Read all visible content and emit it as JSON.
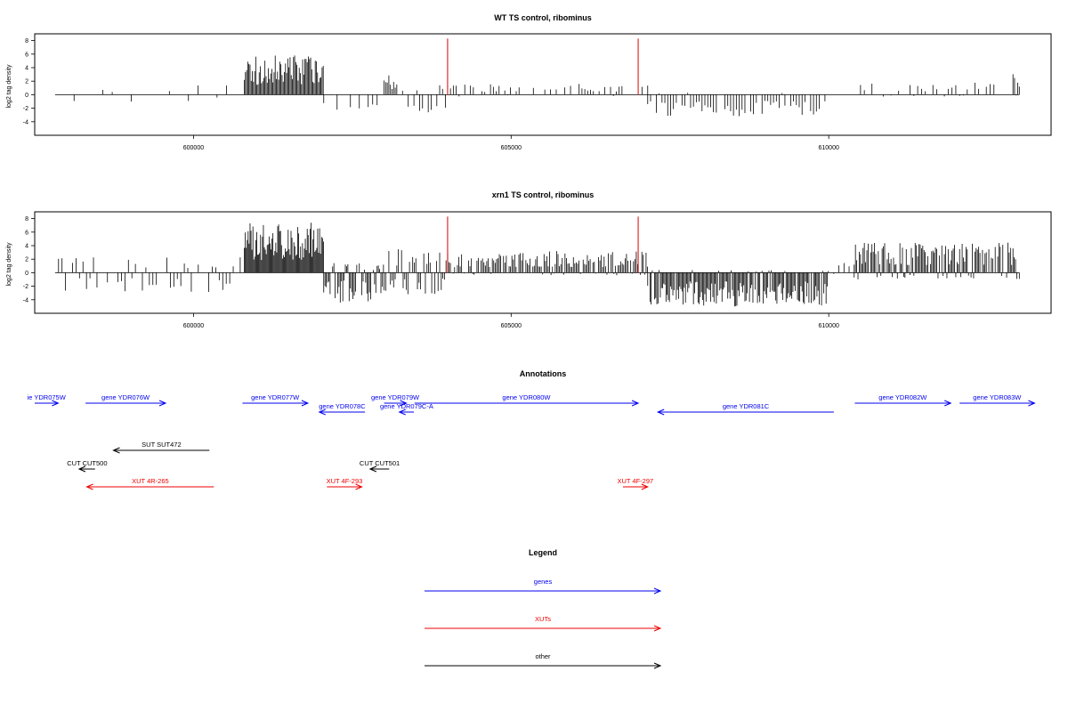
{
  "chart_data": [
    {
      "type": "bar",
      "title": "WT TS control, ribominus",
      "ylabel": "log2 tag density",
      "xlim": [
        597500,
        613500
      ],
      "ylim": [
        -6,
        9
      ],
      "yticks": [
        -4,
        -2,
        0,
        2,
        4,
        6,
        8
      ],
      "xticks": [
        600000,
        605000,
        610000
      ],
      "xtick_labels": [
        "600000",
        "605000",
        "610000"
      ],
      "markers": {
        "color": "#dd0000",
        "x": [
          604000,
          607000
        ],
        "height": 8.3
      },
      "bar_color": "#000000",
      "segments": [
        {
          "from": 597820,
          "to": 600800,
          "step": 150,
          "plus": 1.5,
          "minus": 1.2,
          "density": 0.45,
          "seed": 1
        },
        {
          "from": 600800,
          "to": 602050,
          "step": 18,
          "plus": 5.8,
          "minus": 0,
          "density": 1.0,
          "seed": 2
        },
        {
          "from": 602050,
          "to": 602900,
          "step": 70,
          "plus": 0.6,
          "minus": 2.3,
          "density": 0.6,
          "seed": 3
        },
        {
          "from": 603000,
          "to": 603200,
          "step": 25,
          "plus": 3.0,
          "minus": 0.2,
          "density": 1.0,
          "seed": 4
        },
        {
          "from": 603200,
          "to": 604000,
          "step": 45,
          "plus": 1.6,
          "minus": 2.8,
          "density": 0.8,
          "seed": 5
        },
        {
          "from": 604000,
          "to": 607150,
          "step": 45,
          "plus": 1.6,
          "minus": 0.3,
          "density": 0.55,
          "seed": 6
        },
        {
          "from": 607150,
          "to": 610000,
          "step": 45,
          "plus": 0.3,
          "minus": 3.2,
          "density": 0.85,
          "seed": 7
        },
        {
          "from": 610000,
          "to": 610500,
          "step": 120,
          "plus": 0.3,
          "minus": 0.8,
          "density": 0.3,
          "seed": 8
        },
        {
          "from": 610500,
          "to": 612900,
          "step": 60,
          "plus": 1.9,
          "minus": 0.3,
          "density": 0.6,
          "seed": 9
        },
        {
          "from": 612900,
          "to": 613000,
          "step": 25,
          "plus": 3.3,
          "minus": 0.2,
          "density": 1.0,
          "seed": 10
        }
      ]
    },
    {
      "type": "bar",
      "title": "xrn1 TS control, ribominus",
      "ylabel": "log2 tag density",
      "xlim": [
        597500,
        613500
      ],
      "ylim": [
        -6,
        9
      ],
      "yticks": [
        -4,
        -2,
        0,
        2,
        4,
        6,
        8
      ],
      "xticks": [
        600000,
        605000,
        610000
      ],
      "xtick_labels": [
        "600000",
        "605000",
        "610000"
      ],
      "markers": {
        "color": "#dd0000",
        "x": [
          604000,
          607000
        ],
        "height": 8.3
      },
      "bar_color": "#000000",
      "segments": [
        {
          "from": 597820,
          "to": 600800,
          "step": 55,
          "plus": 2.5,
          "minus": 3.0,
          "density": 0.75,
          "seed": 11
        },
        {
          "from": 600800,
          "to": 602050,
          "step": 15,
          "plus": 7.5,
          "minus": 0,
          "density": 1.0,
          "seed": 12
        },
        {
          "from": 602050,
          "to": 603000,
          "step": 20,
          "plus": 1.5,
          "minus": 4.5,
          "density": 0.9,
          "seed": 13
        },
        {
          "from": 603000,
          "to": 604000,
          "step": 25,
          "plus": 3.5,
          "minus": 3.2,
          "density": 0.9,
          "seed": 14
        },
        {
          "from": 604000,
          "to": 607150,
          "step": 22,
          "plus": 3.2,
          "minus": 0.4,
          "density": 0.9,
          "seed": 15
        },
        {
          "from": 607150,
          "to": 610000,
          "step": 18,
          "plus": 0.4,
          "minus": 5.0,
          "density": 0.95,
          "seed": 16
        },
        {
          "from": 610000,
          "to": 610400,
          "step": 80,
          "plus": 1.5,
          "minus": 0.5,
          "density": 0.4,
          "seed": 17
        },
        {
          "from": 610400,
          "to": 613000,
          "step": 20,
          "plus": 4.5,
          "minus": 1.0,
          "density": 0.9,
          "seed": 18
        }
      ]
    }
  ],
  "annotations": {
    "title": "Annotations",
    "items": [
      {
        "label": "ie YDR075W",
        "kind": "gene",
        "from": 597500,
        "to": 597870,
        "row": 0,
        "dir": "right"
      },
      {
        "label": "gene YDR076W",
        "kind": "gene",
        "from": 598300,
        "to": 599560,
        "row": 0,
        "dir": "right"
      },
      {
        "label": "gene YDR077W",
        "kind": "gene",
        "from": 600770,
        "to": 601800,
        "row": 0,
        "dir": "right"
      },
      {
        "label": "gene YDR078C",
        "kind": "gene",
        "from": 601980,
        "to": 602700,
        "row": 1,
        "dir": "left"
      },
      {
        "label": "gene YDR079W",
        "kind": "gene",
        "from": 603000,
        "to": 603350,
        "row": 0,
        "dir": "right"
      },
      {
        "label": "gene YDR079C-A",
        "kind": "gene",
        "from": 603240,
        "to": 603470,
        "row": 1,
        "dir": "left"
      },
      {
        "label": "gene YDR080W",
        "kind": "gene",
        "from": 603480,
        "to": 607000,
        "row": 0,
        "dir": "right"
      },
      {
        "label": "gene YDR081C",
        "kind": "gene",
        "from": 607310,
        "to": 610080,
        "row": 1,
        "dir": "left"
      },
      {
        "label": "gene YDR082W",
        "kind": "gene",
        "from": 610410,
        "to": 611920,
        "row": 0,
        "dir": "right"
      },
      {
        "label": "gene YDR083W",
        "kind": "gene",
        "from": 612060,
        "to": 613240,
        "row": 0,
        "dir": "right"
      },
      {
        "label": "SUT SUT472",
        "kind": "other",
        "from": 598740,
        "to": 600250,
        "row": 3,
        "dir": "left"
      },
      {
        "label": "CUT CUT500",
        "kind": "other",
        "from": 598200,
        "to": 598450,
        "row": 4,
        "dir": "left"
      },
      {
        "label": "CUT CUT501",
        "kind": "other",
        "from": 602780,
        "to": 603080,
        "row": 4,
        "dir": "left"
      },
      {
        "label": "XUT 4R-265",
        "kind": "xut",
        "from": 598320,
        "to": 600320,
        "row": 5,
        "dir": "left"
      },
      {
        "label": "XUT 4F-293",
        "kind": "xut",
        "from": 602100,
        "to": 602650,
        "row": 5,
        "dir": "right"
      },
      {
        "label": "XUT 4F-297",
        "kind": "xut",
        "from": 606760,
        "to": 607150,
        "row": 5,
        "dir": "right"
      }
    ]
  },
  "legend": {
    "title": "Legend",
    "items": [
      {
        "label": "genes",
        "kind": "gene"
      },
      {
        "label": "XUTs",
        "kind": "xut"
      },
      {
        "label": "other",
        "kind": "other"
      }
    ]
  },
  "colors": {
    "gene": "#0000ee",
    "xut": "#ee0000",
    "other": "#000000",
    "axis": "#000000"
  }
}
